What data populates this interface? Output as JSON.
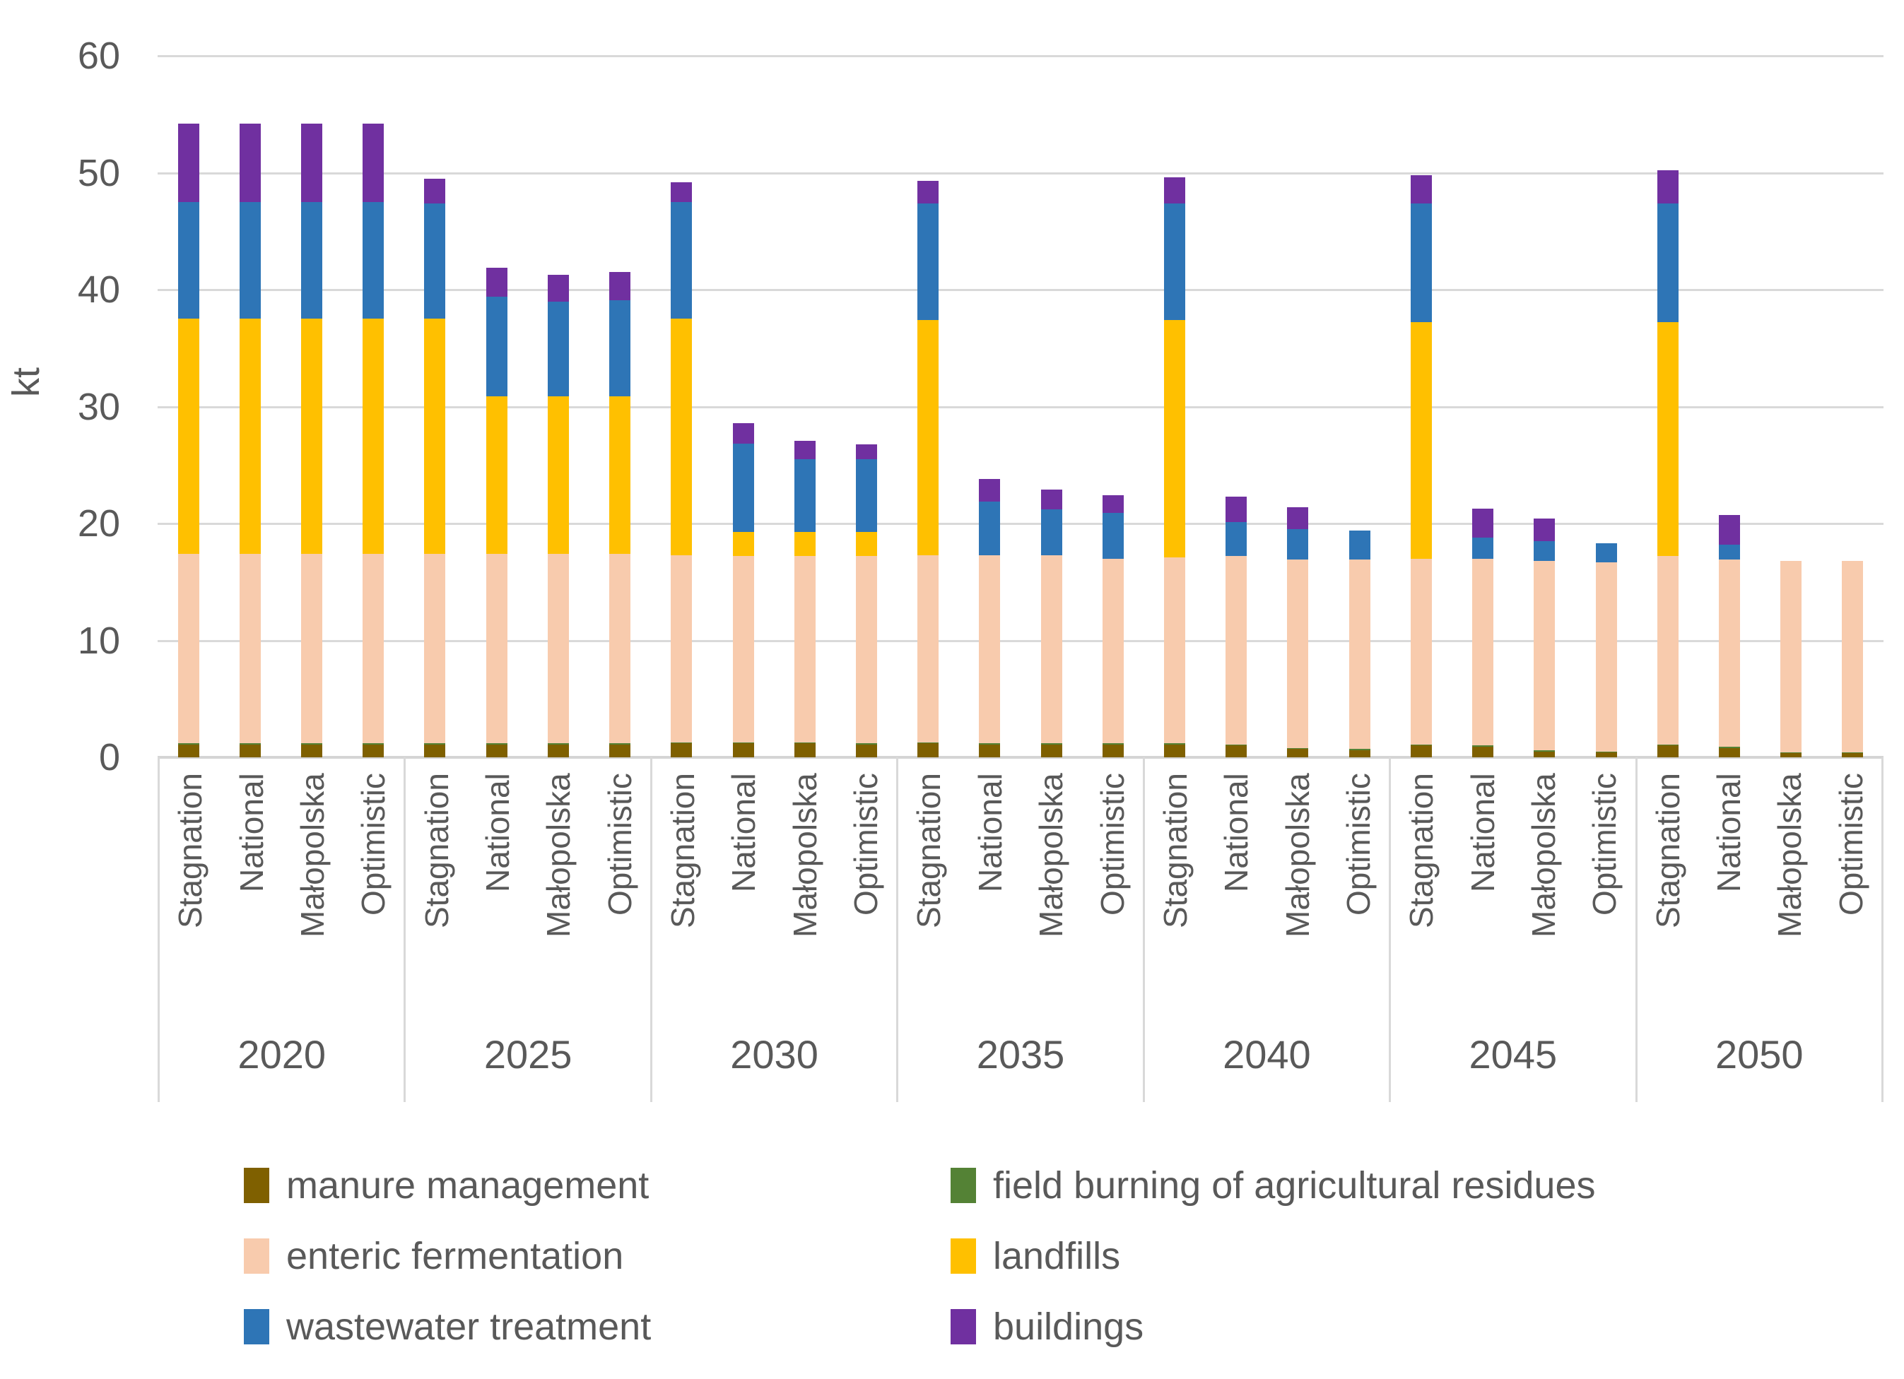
{
  "page": {
    "background": "#ffffff"
  },
  "chart_data": {
    "type": "bar",
    "stacked": true,
    "title": "",
    "xlabel": "",
    "ylabel": "kt",
    "ylim": [
      0,
      60
    ],
    "ytick_step": 10,
    "grid": true,
    "legend_position": "bottom, two columns",
    "axis_text_color": "#595959",
    "gridline_color": "#d9d9d9",
    "scenarios": [
      "Stagnation",
      "National",
      "Małopolska",
      "Optimistic"
    ],
    "series": [
      {
        "name": "manure management",
        "color": "#7F6000"
      },
      {
        "name": "field burning of agricultural residues",
        "color": "#548235"
      },
      {
        "name": "enteric fermentation",
        "color": "#F8CBAD"
      },
      {
        "name": "landfills",
        "color": "#FFC000"
      },
      {
        "name": "wastewater treatment",
        "color": "#2E75B6"
      },
      {
        "name": "buildings",
        "color": "#7030A0"
      }
    ],
    "legend_column_order": [
      "manure management",
      "enteric fermentation",
      "wastewater treatment",
      "field burning of agricultural residues",
      "landfills",
      "buildings"
    ],
    "groups": [
      {
        "year": "2020",
        "bars": [
          {
            "scenario": "Stagnation",
            "values": [
              1.1,
              0.1,
              16.2,
              20.1,
              10.0,
              6.7
            ]
          },
          {
            "scenario": "National",
            "values": [
              1.1,
              0.1,
              16.2,
              20.1,
              10.0,
              6.7
            ]
          },
          {
            "scenario": "Małopolska",
            "values": [
              1.1,
              0.1,
              16.2,
              20.1,
              10.0,
              6.7
            ]
          },
          {
            "scenario": "Optimistic",
            "values": [
              1.1,
              0.1,
              16.2,
              20.1,
              10.0,
              6.7
            ]
          }
        ]
      },
      {
        "year": "2025",
        "bars": [
          {
            "scenario": "Stagnation",
            "values": [
              1.1,
              0.1,
              16.2,
              20.1,
              9.9,
              2.1
            ]
          },
          {
            "scenario": "National",
            "values": [
              1.1,
              0.1,
              16.2,
              13.5,
              8.5,
              2.5
            ]
          },
          {
            "scenario": "Małopolska",
            "values": [
              1.1,
              0.1,
              16.2,
              13.5,
              8.1,
              2.3
            ]
          },
          {
            "scenario": "Optimistic",
            "values": [
              1.1,
              0.1,
              16.2,
              13.5,
              8.2,
              2.4
            ]
          }
        ]
      },
      {
        "year": "2030",
        "bars": [
          {
            "scenario": "Stagnation",
            "values": [
              1.2,
              0.1,
              16.0,
              20.2,
              10.0,
              1.7
            ]
          },
          {
            "scenario": "National",
            "values": [
              1.2,
              0.1,
              15.9,
              2.1,
              7.5,
              1.8
            ]
          },
          {
            "scenario": "Małopolska",
            "values": [
              1.2,
              0.1,
              15.9,
              2.1,
              6.2,
              1.6
            ]
          },
          {
            "scenario": "Optimistic",
            "values": [
              1.1,
              0.1,
              16.0,
              2.1,
              6.2,
              1.3
            ]
          }
        ]
      },
      {
        "year": "2035",
        "bars": [
          {
            "scenario": "Stagnation",
            "values": [
              1.2,
              0.1,
              16.0,
              20.1,
              10.0,
              1.9
            ]
          },
          {
            "scenario": "National",
            "values": [
              1.1,
              0.1,
              16.1,
              0,
              4.6,
              1.9
            ]
          },
          {
            "scenario": "Małopolska",
            "values": [
              1.1,
              0.1,
              16.1,
              0,
              3.9,
              1.7
            ]
          },
          {
            "scenario": "Optimistic",
            "values": [
              1.1,
              0.1,
              15.8,
              0,
              3.9,
              1.5
            ]
          }
        ]
      },
      {
        "year": "2040",
        "bars": [
          {
            "scenario": "Stagnation",
            "values": [
              1.1,
              0.1,
              15.9,
              20.3,
              10.0,
              2.2
            ]
          },
          {
            "scenario": "National",
            "values": [
              1.0,
              0.1,
              16.1,
              0,
              2.9,
              2.2
            ]
          },
          {
            "scenario": "Małopolska",
            "values": [
              0.7,
              0.1,
              16.1,
              0,
              2.6,
              1.9
            ]
          },
          {
            "scenario": "Optimistic",
            "values": [
              0.6,
              0.1,
              16.2,
              0,
              2.5,
              0
            ]
          }
        ]
      },
      {
        "year": "2045",
        "bars": [
          {
            "scenario": "Stagnation",
            "values": [
              1.0,
              0.1,
              15.9,
              20.2,
              10.2,
              2.4
            ]
          },
          {
            "scenario": "National",
            "values": [
              0.9,
              0.1,
              16.0,
              0,
              1.8,
              2.5
            ]
          },
          {
            "scenario": "Małopolska",
            "values": [
              0.5,
              0.1,
              16.2,
              0,
              1.7,
              1.9
            ]
          },
          {
            "scenario": "Optimistic",
            "values": [
              0.4,
              0.1,
              16.2,
              0,
              1.6,
              0
            ]
          }
        ]
      },
      {
        "year": "2050",
        "bars": [
          {
            "scenario": "Stagnation",
            "values": [
              1.0,
              0.1,
              16.1,
              20.0,
              10.2,
              2.8
            ]
          },
          {
            "scenario": "National",
            "values": [
              0.8,
              0.1,
              16.0,
              0,
              1.3,
              2.5
            ]
          },
          {
            "scenario": "Małopolska",
            "values": [
              0.35,
              0.05,
              16.4,
              0,
              0,
              0
            ]
          },
          {
            "scenario": "Optimistic",
            "values": [
              0.35,
              0.05,
              16.4,
              0,
              0,
              0
            ]
          }
        ]
      }
    ]
  }
}
